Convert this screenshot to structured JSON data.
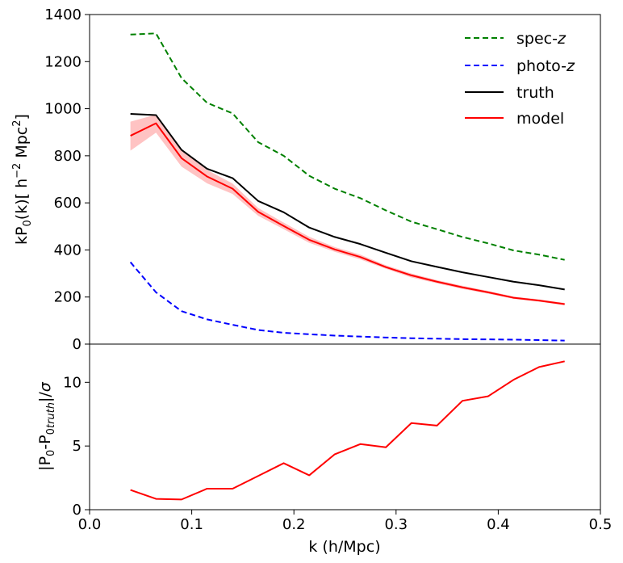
{
  "chart_data": [
    {
      "type": "line",
      "panel": "top",
      "ylabel": "kP0(k)[ h−2 Mpc2]",
      "ylabel_parts": {
        "main": "kP",
        "sub": "0",
        "mid": "(k)[ h",
        "sup1": "−2",
        "tail": " Mpc",
        "sup2": "2",
        "end": "]"
      },
      "xlim": [
        0.0,
        0.5
      ],
      "ylim": [
        0,
        1400
      ],
      "yticks": [
        "0",
        "200",
        "400",
        "600",
        "800",
        "1000",
        "1200",
        "1400"
      ],
      "ytick_values": [
        0,
        200,
        400,
        600,
        800,
        1000,
        1200,
        1400
      ],
      "x": [
        0.04,
        0.065,
        0.09,
        0.115,
        0.14,
        0.165,
        0.19,
        0.215,
        0.24,
        0.265,
        0.29,
        0.315,
        0.34,
        0.365,
        0.39,
        0.415,
        0.44,
        0.465
      ],
      "series": [
        {
          "name": "spec-z",
          "label_main": "spec-",
          "label_italic": "z",
          "color": "#008000",
          "style": "dashed",
          "values": [
            1315,
            1320,
            1130,
            1025,
            980,
            858,
            800,
            715,
            660,
            620,
            568,
            520,
            488,
            455,
            428,
            398,
            380,
            358
          ]
        },
        {
          "name": "photo-z",
          "label_main": "photo-",
          "label_italic": "z",
          "color": "#0000ff",
          "style": "dashed",
          "values": [
            348,
            220,
            140,
            105,
            82,
            60,
            48,
            42,
            36,
            32,
            28,
            25,
            23,
            21,
            20,
            19,
            17,
            15
          ]
        },
        {
          "name": "truth",
          "label_main": "truth",
          "label_italic": "",
          "color": "#000000",
          "style": "solid",
          "values": [
            978,
            973,
            825,
            745,
            705,
            608,
            560,
            495,
            455,
            425,
            388,
            352,
            328,
            305,
            285,
            265,
            250,
            232
          ]
        },
        {
          "name": "model",
          "label_main": "model",
          "label_italic": "",
          "color": "#ff0000",
          "style": "solid",
          "values": [
            885,
            938,
            790,
            712,
            660,
            562,
            502,
            443,
            402,
            370,
            327,
            292,
            265,
            241,
            220,
            197,
            185,
            170
          ],
          "band_lower": [
            822,
            898,
            754,
            683,
            638,
            545,
            488,
            430,
            392,
            360,
            320,
            283,
            258,
            234,
            214,
            192,
            180,
            165
          ],
          "band_upper": [
            945,
            975,
            825,
            740,
            682,
            578,
            516,
            456,
            412,
            380,
            335,
            300,
            272,
            248,
            226,
            202,
            190,
            175
          ],
          "band_color": "#ffaaaa"
        }
      ],
      "legend": {
        "position": "top-right"
      }
    },
    {
      "type": "line",
      "panel": "bottom",
      "xlabel": "k (h/Mpc)",
      "ylabel": "|P0-P0truth|/σ",
      "ylabel_parts": {
        "bar1": "|P",
        "sub1": "0",
        "mid": "-P",
        "sub2": "0",
        "sub_italic": "truth",
        "end": "|/",
        "sigma": "σ"
      },
      "xlim": [
        0.0,
        0.5
      ],
      "ylim": [
        0,
        13.0
      ],
      "xticks": [
        "0.0",
        "0.1",
        "0.2",
        "0.3",
        "0.4",
        "0.5"
      ],
      "xtick_values": [
        0.0,
        0.1,
        0.2,
        0.3,
        0.4,
        0.5
      ],
      "yticks": [
        "0",
        "5",
        "10"
      ],
      "ytick_values": [
        0,
        5,
        10
      ],
      "x": [
        0.04,
        0.065,
        0.09,
        0.115,
        0.14,
        0.165,
        0.19,
        0.215,
        0.24,
        0.265,
        0.29,
        0.315,
        0.34,
        0.365,
        0.39,
        0.415,
        0.44,
        0.465
      ],
      "series": [
        {
          "name": "model",
          "color": "#ff0000",
          "style": "solid",
          "values": [
            1.55,
            0.85,
            0.8,
            1.65,
            1.65,
            2.65,
            3.65,
            2.7,
            4.35,
            5.15,
            4.9,
            6.8,
            6.6,
            8.55,
            8.9,
            10.2,
            11.2,
            11.65
          ]
        }
      ]
    }
  ]
}
